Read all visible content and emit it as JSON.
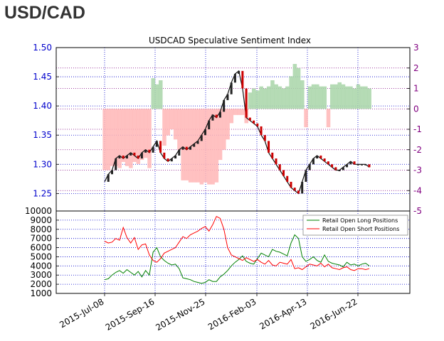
{
  "header": {
    "title": "USD/CAD"
  },
  "colors": {
    "price_axis": "#0000cc",
    "sentiment_axis": "#800080",
    "long_color": "#008000",
    "short_color": "#ff0000",
    "long_fill": "#a8d5a8",
    "short_fill": "#ffb6b6",
    "grid": "#0000cc"
  },
  "chart_data": [
    {
      "type": "line",
      "title": "USDCAD Speculative Sentiment Index",
      "x_tick_labels": [
        "2015-Jul-08",
        "2015-Sep-16",
        "2015-Nov-25",
        "2016-Feb-03",
        "2016-Apr-13",
        "2016-Jun-22"
      ],
      "ylim": [
        1.22,
        1.5
      ],
      "y_ticks": [
        "1.25",
        "1.30",
        "1.35",
        "1.40",
        "1.45",
        "1.50"
      ],
      "y2lim": [
        -5,
        3
      ],
      "y2_ticks": [
        "-5",
        "-4",
        "-3",
        "-2",
        "-1",
        "0",
        "1",
        "2",
        "3"
      ],
      "grid": true,
      "series": [
        {
          "role": "price",
          "x": [
            0,
            5,
            10,
            15,
            20,
            25,
            30,
            35,
            40,
            45,
            50,
            55,
            60,
            65,
            70,
            75,
            80,
            85,
            90,
            95,
            100,
            105,
            110,
            115,
            120,
            125,
            130,
            135,
            140,
            145,
            150,
            155,
            160,
            165,
            170,
            175,
            180,
            185,
            190,
            195,
            200,
            205,
            210,
            215,
            220,
            225,
            230,
            235,
            240,
            245,
            250,
            255,
            260,
            265,
            270,
            275,
            280,
            285,
            290,
            295,
            300,
            305,
            310,
            315,
            320,
            325,
            330,
            335,
            340,
            345,
            350,
            355
          ],
          "y": [
            1.27,
            1.283,
            1.29,
            1.31,
            1.315,
            1.31,
            1.315,
            1.32,
            1.315,
            1.31,
            1.32,
            1.325,
            1.32,
            1.33,
            1.34,
            1.32,
            1.31,
            1.305,
            1.31,
            1.315,
            1.325,
            1.33,
            1.325,
            1.33,
            1.335,
            1.34,
            1.35,
            1.36,
            1.375,
            1.385,
            1.38,
            1.39,
            1.41,
            1.42,
            1.44,
            1.455,
            1.46,
            1.43,
            1.38,
            1.375,
            1.37,
            1.365,
            1.35,
            1.34,
            1.32,
            1.31,
            1.3,
            1.29,
            1.28,
            1.27,
            1.26,
            1.255,
            1.25,
            1.27,
            1.29,
            1.3,
            1.31,
            1.315,
            1.31,
            1.305,
            1.3,
            1.295,
            1.29,
            1.29,
            1.295,
            1.3,
            1.305,
            1.3,
            1.3,
            1.3,
            1.3,
            1.295
          ]
        },
        {
          "role": "sentiment",
          "x": [
            0,
            5,
            10,
            15,
            20,
            25,
            30,
            35,
            40,
            45,
            50,
            55,
            60,
            65,
            70,
            75,
            80,
            85,
            90,
            95,
            100,
            105,
            110,
            115,
            120,
            125,
            130,
            135,
            140,
            145,
            150,
            155,
            160,
            165,
            170,
            175,
            180,
            185,
            190,
            195,
            200,
            205,
            210,
            215,
            220,
            225,
            230,
            235,
            240,
            245,
            250,
            255,
            260,
            265,
            270,
            275,
            280,
            285,
            290,
            295,
            300,
            305,
            310,
            315,
            320,
            325,
            330,
            335,
            340,
            345,
            350,
            355
          ],
          "y": [
            -3.0,
            -3.0,
            -2.8,
            -2.8,
            -2.9,
            -2.6,
            -2.8,
            -2.9,
            -2.6,
            -2.7,
            -2.5,
            -2.4,
            -2.9,
            1.5,
            1.2,
            1.4,
            -1.8,
            -1.3,
            -1.0,
            -1.5,
            -2.0,
            -3.5,
            -3.5,
            -3.6,
            -3.6,
            -3.6,
            -3.7,
            -3.6,
            -3.7,
            -3.7,
            -3.6,
            -2.5,
            -2.0,
            -1.5,
            -0.7,
            -0.3,
            -0.3,
            -0.3,
            -0.7,
            0.8,
            1.0,
            0.9,
            1.1,
            1.0,
            1.1,
            1.4,
            1.2,
            1.1,
            1.0,
            1.1,
            1.6,
            2.2,
            2.0,
            1.4,
            -0.9,
            1.1,
            1.2,
            1.2,
            1.1,
            1.1,
            -0.9,
            1.2,
            1.2,
            1.3,
            1.2,
            1.1,
            1.1,
            1.0,
            1.2,
            1.1,
            1.1,
            1.0
          ]
        }
      ]
    },
    {
      "type": "line",
      "x_tick_labels": [
        "2015-Jul-08",
        "2015-Sep-16",
        "2015-Nov-25",
        "2016-Feb-03",
        "2016-Apr-13",
        "2016-Jun-22"
      ],
      "ylim": [
        1000,
        10000
      ],
      "y_ticks": [
        "1000",
        "2000",
        "3000",
        "4000",
        "5000",
        "6000",
        "7000",
        "8000",
        "9000",
        "10000"
      ],
      "legend_position": "top-right",
      "grid": true,
      "series": [
        {
          "name": "Retail Open Long Positions",
          "x": [
            0,
            5,
            10,
            15,
            20,
            25,
            30,
            35,
            40,
            45,
            50,
            55,
            60,
            65,
            70,
            75,
            80,
            85,
            90,
            95,
            100,
            105,
            110,
            115,
            120,
            125,
            130,
            135,
            140,
            145,
            150,
            155,
            160,
            165,
            170,
            175,
            180,
            185,
            190,
            195,
            200,
            205,
            210,
            215,
            220,
            225,
            230,
            235,
            240,
            245,
            250,
            255,
            260,
            265,
            270,
            275,
            280,
            285,
            290,
            295,
            300,
            305,
            310,
            315,
            320,
            325,
            330,
            335,
            340,
            345,
            350,
            355
          ],
          "y": [
            2500,
            2600,
            3000,
            3300,
            3500,
            3200,
            3600,
            3300,
            3000,
            3400,
            2800,
            3500,
            3000,
            5500,
            6000,
            5000,
            4600,
            4300,
            4100,
            4200,
            3700,
            2700,
            2600,
            2500,
            2300,
            2200,
            2100,
            2200,
            2500,
            2300,
            2300,
            2800,
            3100,
            3500,
            4000,
            4400,
            4700,
            5100,
            4500,
            4300,
            4200,
            4800,
            5400,
            5200,
            5000,
            5800,
            5600,
            5500,
            5300,
            5100,
            6500,
            7400,
            7000,
            5000,
            4500,
            4700,
            5000,
            4600,
            4400,
            5200,
            4500,
            4300,
            4200,
            4100,
            3900,
            4400,
            4100,
            4200,
            4000,
            4200,
            4300,
            4000
          ]
        },
        {
          "name": "Retail Open Short Positions",
          "x": [
            0,
            5,
            10,
            15,
            20,
            25,
            30,
            35,
            40,
            45,
            50,
            55,
            60,
            65,
            70,
            75,
            80,
            85,
            90,
            95,
            100,
            105,
            110,
            115,
            120,
            125,
            130,
            135,
            140,
            145,
            150,
            155,
            160,
            165,
            170,
            175,
            180,
            185,
            190,
            195,
            200,
            205,
            210,
            215,
            220,
            225,
            230,
            235,
            240,
            245,
            250,
            255,
            260,
            265,
            270,
            275,
            280,
            285,
            290,
            295,
            300,
            305,
            310,
            315,
            320,
            325,
            330,
            335,
            340,
            345,
            350,
            355
          ],
          "y": [
            6700,
            6500,
            6600,
            7000,
            6800,
            8200,
            7100,
            6500,
            7100,
            5800,
            6300,
            6400,
            5200,
            4600,
            4400,
            4800,
            5400,
            5600,
            5800,
            6000,
            6600,
            7200,
            7000,
            7400,
            7600,
            7800,
            8100,
            8300,
            7800,
            8500,
            9400,
            9200,
            8000,
            6000,
            5200,
            5000,
            4800,
            4600,
            4900,
            4700,
            4500,
            4700,
            4400,
            4200,
            4600,
            4100,
            4000,
            4400,
            4300,
            4200,
            4700,
            3700,
            3800,
            3600,
            3900,
            4200,
            4100,
            4000,
            4300,
            3900,
            4200,
            3800,
            3700,
            3600,
            3800,
            3900,
            3600,
            3500,
            3700,
            3700,
            3600,
            3700
          ]
        }
      ]
    }
  ]
}
